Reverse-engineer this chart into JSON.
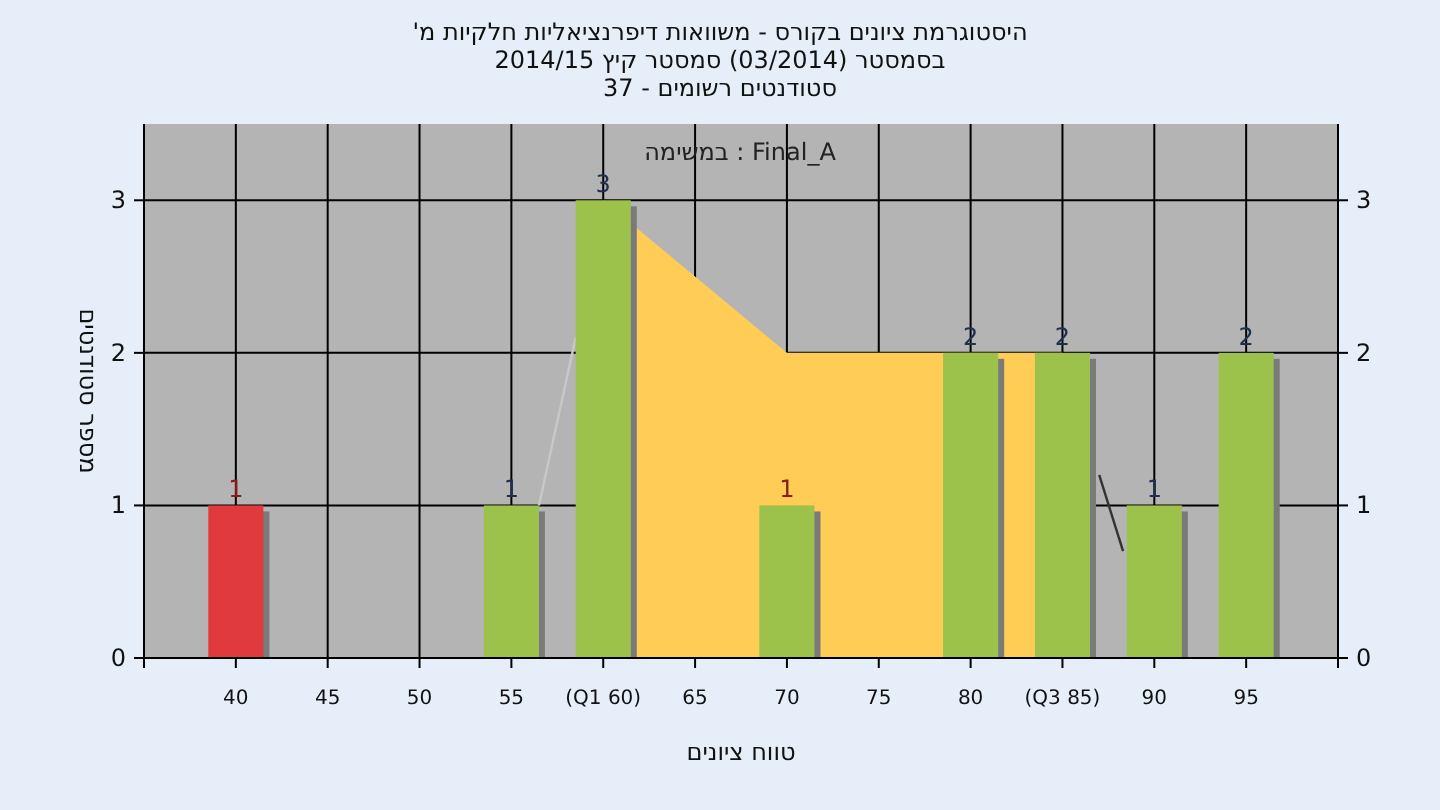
{
  "chart_data": {
    "type": "bar",
    "title": "היסטוגרמת ציונים בקורס - משוואות דיפרנציאליות חלקיות מ'",
    "subtitle": "בסמסטר  (03/2014)  סמסטר קיץ 2014/15",
    "annotations": [
      "סטודנטים רשומים - 37",
      "במשימה : Final_A"
    ],
    "xlabel": "טווח ציונים",
    "ylabel": "מספר סטודנטים",
    "series": [
      {
        "type": "area",
        "x": [
          60,
          70,
          85
        ],
        "values": [
          3,
          2,
          2
        ],
        "color": "#ffcc55"
      },
      {
        "type": "line",
        "x": [
          56.5,
          58.5
        ],
        "values": [
          1,
          2.1
        ],
        "color": "#c8c8c8"
      },
      {
        "type": "line",
        "x": [
          87,
          88.3
        ],
        "values": [
          1.2,
          0.7
        ],
        "color": "#333333"
      },
      {
        "x": [
          40,
          55,
          60,
          70,
          80,
          85,
          90,
          95
        ],
        "values": [
          1,
          1,
          3,
          1,
          2,
          2,
          1,
          2
        ],
        "value_labels": [
          "1",
          "1",
          "3",
          "1",
          "2",
          "2",
          "1",
          "2"
        ],
        "colors": [
          "#e03a3e",
          "#9cc24c",
          "#9cc24c",
          "#9cc24c",
          "#9cc24c",
          "#9cc24c",
          "#9cc24c",
          "#9cc24c"
        ]
      }
    ],
    "xlim": [
      35,
      100
    ],
    "xticks": [
      {
        "value": 35,
        "label": null
      },
      40,
      45,
      50,
      55,
      {
        "value": 60,
        "label": "(Q1 60)"
      },
      65,
      70,
      75,
      80,
      {
        "value": 85,
        "label": "(Q3 85)"
      },
      90,
      95,
      {
        "value": 100,
        "label": null
      }
    ],
    "ylim": [
      0,
      3.5
    ],
    "yticks": [
      0,
      1,
      2,
      3
    ],
    "y2lim": [
      0,
      3.5
    ],
    "y2ticks": [
      0,
      1,
      2,
      3
    ],
    "grid": true
  }
}
